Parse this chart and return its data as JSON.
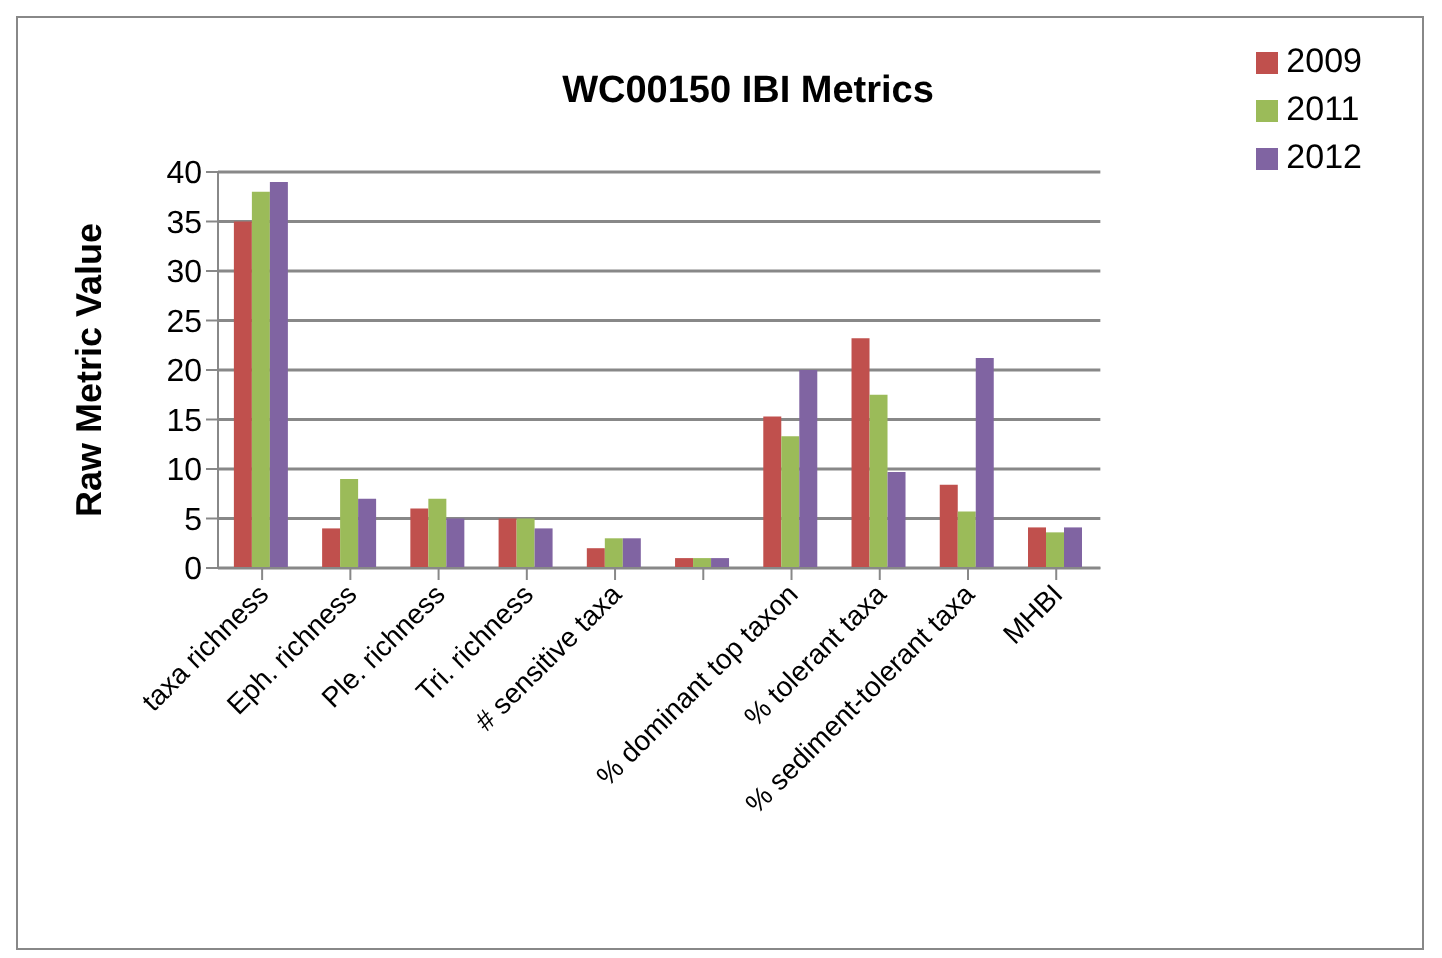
{
  "chart_data": {
    "type": "bar",
    "title": "WC00150 IBI Metrics",
    "ylabel": "Raw Metric Value",
    "categories": [
      "taxa richness",
      "Eph. richness",
      "Ple. richness",
      "Tri. richness",
      "# sensitive taxa",
      null,
      "% dominant top taxon",
      "% tolerant taxa",
      "% sediment-tolerant taxa",
      "MHBI"
    ],
    "series": [
      {
        "name": "2009",
        "color": "#c0504d",
        "values": [
          35,
          4,
          6,
          5,
          2,
          1,
          15.3,
          23.2,
          8.4,
          4.1
        ]
      },
      {
        "name": "2011",
        "color": "#9bbb59",
        "values": [
          38,
          9,
          7,
          5,
          3,
          1,
          13.3,
          17.5,
          5.7,
          3.6
        ]
      },
      {
        "name": "2012",
        "color": "#8064a2",
        "values": [
          39,
          7,
          5,
          4,
          3,
          1,
          20,
          9.7,
          21.2,
          4.1
        ]
      }
    ],
    "ylim": [
      0,
      40
    ],
    "yticks": [
      0,
      5,
      10,
      15,
      20,
      25,
      30,
      35,
      40
    ],
    "grid": "y",
    "legend": "top right"
  }
}
